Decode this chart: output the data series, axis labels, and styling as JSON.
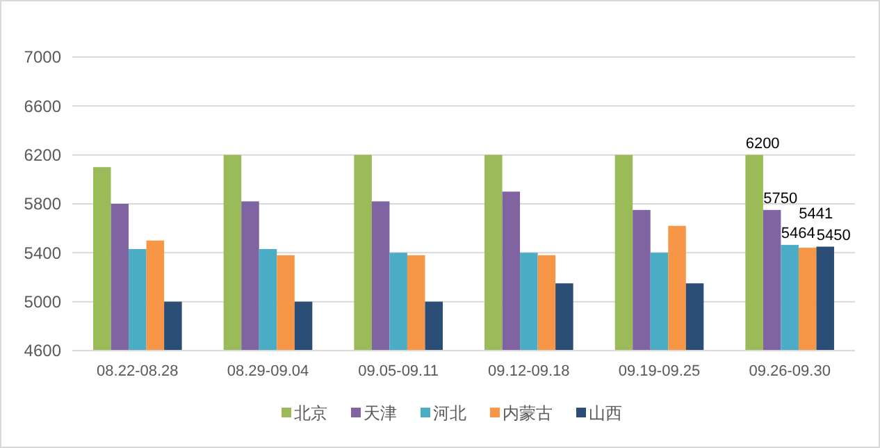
{
  "chart_data": {
    "type": "bar",
    "categories": [
      "08.22-08.28",
      "08.29-09.04",
      "09.05-09.11",
      "09.12-09.18",
      "09.19-09.25",
      "09.26-09.30"
    ],
    "series": [
      {
        "name": "北京",
        "color": "#9bbb59",
        "values": [
          6100,
          6200,
          6200,
          6200,
          6200,
          6200
        ],
        "value_labels": [
          null,
          null,
          null,
          null,
          null,
          "6200"
        ]
      },
      {
        "name": "天津",
        "color": "#8064a2",
        "values": [
          5800,
          5820,
          5820,
          5900,
          5750,
          5750
        ],
        "value_labels": [
          null,
          null,
          null,
          null,
          null,
          "5750"
        ]
      },
      {
        "name": "河北",
        "color": "#4bacc6",
        "values": [
          5430,
          5430,
          5400,
          5400,
          5400,
          5464
        ],
        "value_labels": [
          null,
          null,
          null,
          null,
          null,
          "5464"
        ]
      },
      {
        "name": "内蒙古",
        "color": "#f79646",
        "values": [
          5500,
          5380,
          5380,
          5380,
          5620,
          5441
        ],
        "value_labels": [
          null,
          null,
          null,
          null,
          null,
          "5441"
        ]
      },
      {
        "name": "山西",
        "color": "#2c4d75",
        "values": [
          5000,
          5000,
          5000,
          5150,
          5150,
          5450
        ],
        "value_labels": [
          null,
          null,
          null,
          null,
          null,
          "5450"
        ]
      }
    ],
    "ylim": [
      4600,
      7000
    ],
    "yticks": [
      4600,
      5000,
      5400,
      5800,
      6200,
      6600,
      7000
    ],
    "grid": "y",
    "legend": "bottom"
  }
}
